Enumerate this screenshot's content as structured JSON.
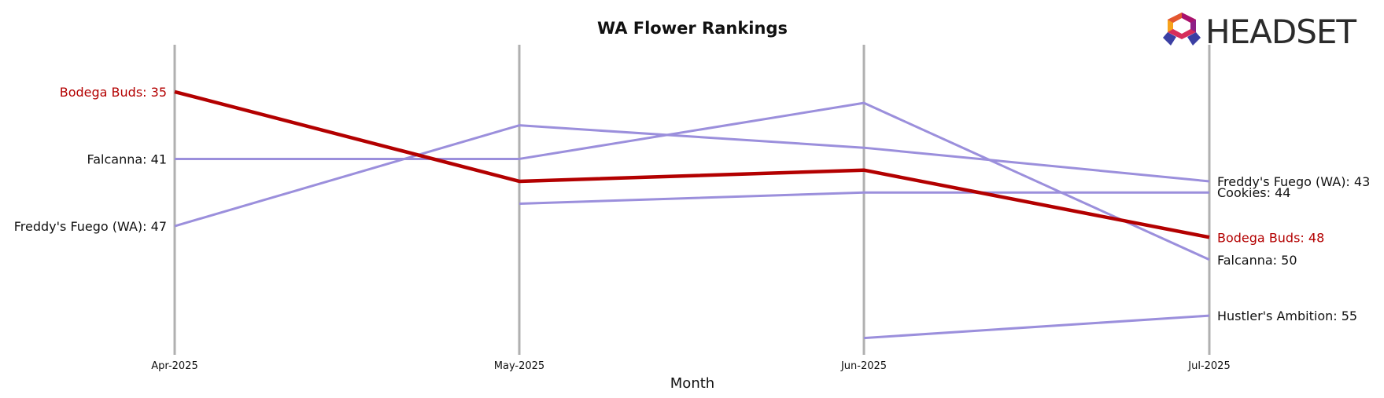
{
  "chart_data": {
    "type": "line",
    "title": "WA Flower Rankings",
    "xlabel": "Month",
    "ylabel": "",
    "categories": [
      "Apr-2025",
      "May-2025",
      "Jun-2025",
      "Jul-2025"
    ],
    "y_inverted": true,
    "ylim": [
      30.8,
      58.5
    ],
    "grid": "vertical lines at each month",
    "highlight_color": "#b30000",
    "other_color": "#9b8fdc",
    "series": [
      {
        "name": "Bodega Buds",
        "values": [
          35,
          43,
          42,
          48
        ],
        "highlight": true,
        "start_label": "Bodega Buds: 35",
        "end_label": "Bodega Buds: 48"
      },
      {
        "name": "Falcanna",
        "values": [
          41,
          41,
          36,
          50
        ],
        "highlight": false,
        "start_label": "Falcanna: 41",
        "end_label": "Falcanna: 50"
      },
      {
        "name": "Freddy's Fuego (WA)",
        "values": [
          47,
          38,
          40,
          43
        ],
        "highlight": false,
        "start_label": "Freddy's Fuego (WA): 47",
        "end_label": "Freddy's Fuego (WA): 43"
      },
      {
        "name": "Cookies",
        "values": [
          null,
          45,
          44,
          44
        ],
        "highlight": false,
        "start_label": "",
        "end_label": "Cookies: 44"
      },
      {
        "name": "Hustler's Ambition",
        "values": [
          null,
          null,
          57,
          55
        ],
        "highlight": false,
        "start_label": "",
        "end_label": "Hustler's Ambition: 55"
      }
    ]
  },
  "logo": {
    "text": "HEADSET"
  }
}
